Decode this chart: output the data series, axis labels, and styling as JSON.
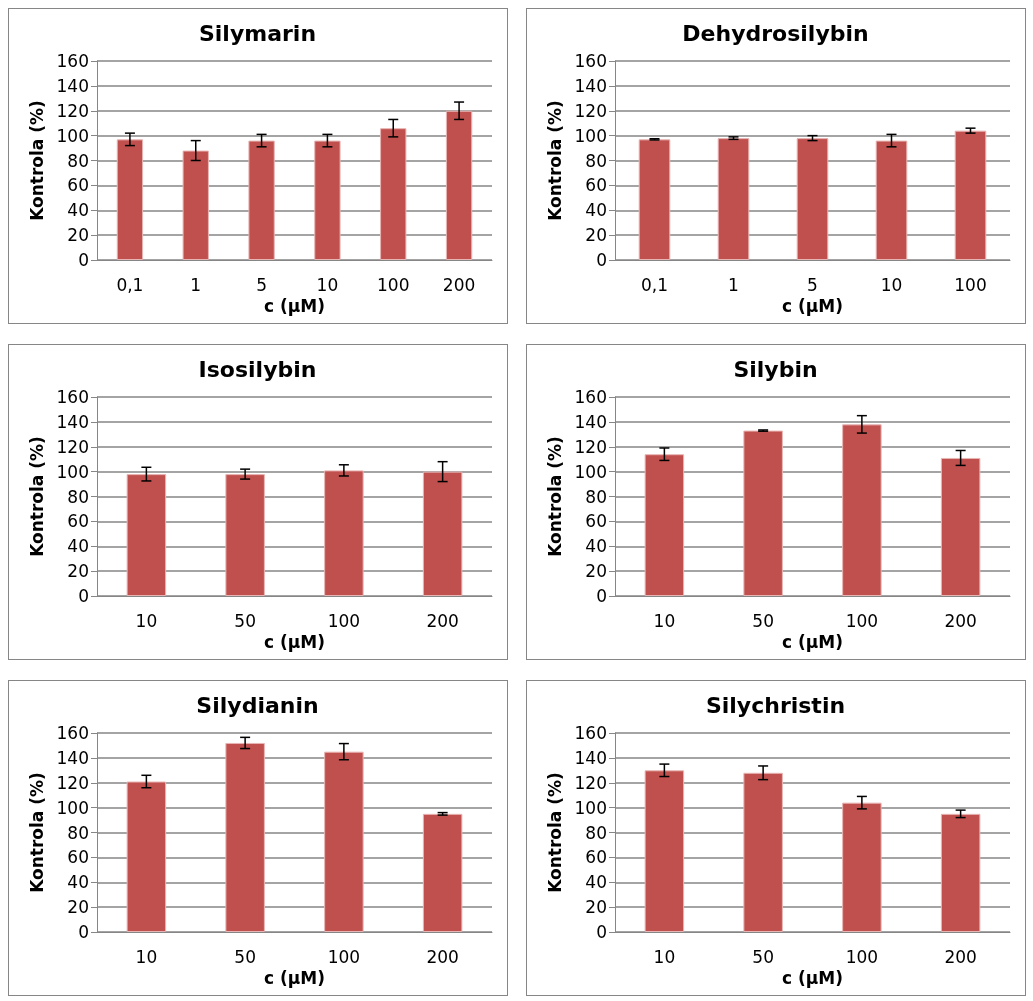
{
  "chart_data": [
    {
      "type": "bar",
      "title": "Silymarin",
      "xlabel": "c (μM)",
      "ylabel": "Kontrola (%)",
      "categories": [
        "0,1",
        "1",
        "5",
        "10",
        "100",
        "200"
      ],
      "values": [
        97,
        88,
        96,
        96,
        106,
        120
      ],
      "errors": [
        5,
        8,
        5,
        5,
        7,
        7
      ],
      "color": "#c0504d",
      "ylim": [
        0,
        160
      ],
      "yticks": [
        0,
        20,
        40,
        60,
        80,
        100,
        120,
        140,
        160
      ],
      "grid": "y"
    },
    {
      "type": "bar",
      "title": "Dehydrosilybin",
      "xlabel": "c (μM)",
      "ylabel": "Kontrola (%)",
      "categories": [
        "0,1",
        "1",
        "5",
        "10",
        "100"
      ],
      "values": [
        97,
        98,
        98,
        96,
        104
      ],
      "errors": [
        0.5,
        1,
        2,
        5,
        2
      ],
      "color": "#c0504d",
      "ylim": [
        0,
        160
      ],
      "yticks": [
        0,
        20,
        40,
        60,
        80,
        100,
        120,
        140,
        160
      ],
      "grid": "y"
    },
    {
      "type": "bar",
      "title": "Isosilybin",
      "xlabel": "c (μM)",
      "ylabel": "Kontrola (%)",
      "categories": [
        "10",
        "50",
        "100",
        "200"
      ],
      "values": [
        98,
        98,
        101,
        100
      ],
      "errors": [
        5.5,
        4,
        4.5,
        8
      ],
      "color": "#c0504d",
      "ylim": [
        0,
        160
      ],
      "yticks": [
        0,
        20,
        40,
        60,
        80,
        100,
        120,
        140,
        160
      ],
      "grid": "y"
    },
    {
      "type": "bar",
      "title": "Silybin",
      "xlabel": "c (μM)",
      "ylabel": "Kontrola (%)",
      "categories": [
        "10",
        "50",
        "100",
        "200"
      ],
      "values": [
        114,
        133,
        138,
        111
      ],
      "errors": [
        5,
        0.5,
        7,
        6
      ],
      "color": "#c0504d",
      "ylim": [
        0,
        160
      ],
      "yticks": [
        0,
        20,
        40,
        60,
        80,
        100,
        120,
        140,
        160
      ],
      "grid": "y"
    },
    {
      "type": "bar",
      "title": "Silydianin",
      "xlabel": "c (μM)",
      "ylabel": "Kontrola (%)",
      "categories": [
        "10",
        "50",
        "100",
        "200"
      ],
      "values": [
        121,
        152,
        145,
        95
      ],
      "errors": [
        5,
        4.5,
        6.5,
        1
      ],
      "color": "#c0504d",
      "ylim": [
        0,
        160
      ],
      "yticks": [
        0,
        20,
        40,
        60,
        80,
        100,
        120,
        140,
        160
      ],
      "grid": "y"
    },
    {
      "type": "bar",
      "title": "Silychristin",
      "xlabel": "c (μM)",
      "ylabel": "Kontrola (%)",
      "categories": [
        "10",
        "50",
        "100",
        "200"
      ],
      "values": [
        130,
        128,
        104,
        95
      ],
      "errors": [
        5,
        5.5,
        5,
        3
      ],
      "color": "#c0504d",
      "ylim": [
        0,
        160
      ],
      "yticks": [
        0,
        20,
        40,
        60,
        80,
        100,
        120,
        140,
        160
      ],
      "grid": "y"
    }
  ]
}
